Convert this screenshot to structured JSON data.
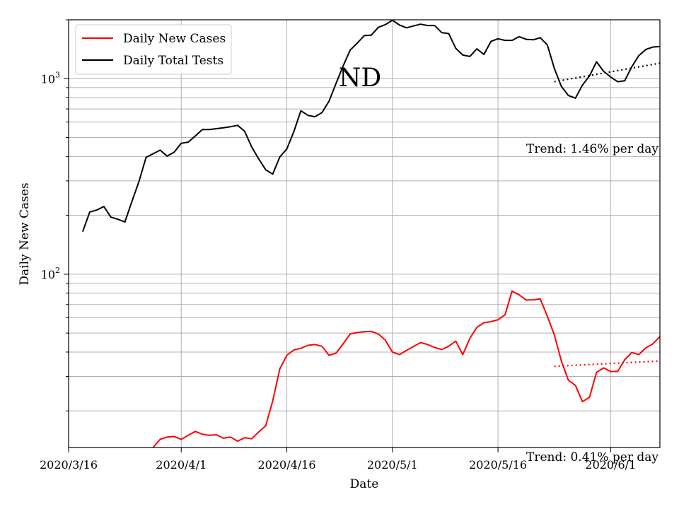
{
  "chart_data": {
    "type": "line",
    "title": "ND",
    "xlabel": "Date",
    "ylabel": "Daily New Cases",
    "yscale": "log",
    "ylim": [
      13,
      2000
    ],
    "xlim": [
      "2020-03-16",
      "2020-06-08"
    ],
    "grid": true,
    "legend_position": "top-left",
    "x_ticks": [
      "2020/3/16",
      "2020/4/1",
      "2020/4/16",
      "2020/5/1",
      "2020/5/16",
      "2020/6/1"
    ],
    "y_tick_labels": [
      {
        "base": "10",
        "exp": "2"
      },
      {
        "base": "10",
        "exp": "3"
      }
    ],
    "series": [
      {
        "name": "Daily New Cases",
        "color": "#ff0000",
        "x": [
          "2020-03-28",
          "2020-03-29",
          "2020-03-30",
          "2020-03-31",
          "2020-04-01",
          "2020-04-02",
          "2020-04-03",
          "2020-04-04",
          "2020-04-05",
          "2020-04-06",
          "2020-04-07",
          "2020-04-08",
          "2020-04-09",
          "2020-04-10",
          "2020-04-11",
          "2020-04-12",
          "2020-04-13",
          "2020-04-14",
          "2020-04-15",
          "2020-04-16",
          "2020-04-17",
          "2020-04-18",
          "2020-04-19",
          "2020-04-20",
          "2020-04-21",
          "2020-04-22",
          "2020-04-23",
          "2020-04-24",
          "2020-04-25",
          "2020-04-26",
          "2020-04-27",
          "2020-04-28",
          "2020-04-29",
          "2020-04-30",
          "2020-05-01",
          "2020-05-02",
          "2020-05-03",
          "2020-05-04",
          "2020-05-05",
          "2020-05-06",
          "2020-05-07",
          "2020-05-08",
          "2020-05-09",
          "2020-05-10",
          "2020-05-11",
          "2020-05-12",
          "2020-05-13",
          "2020-05-14",
          "2020-05-15",
          "2020-05-16",
          "2020-05-17",
          "2020-05-18",
          "2020-05-19",
          "2020-05-20",
          "2020-05-21",
          "2020-05-22",
          "2020-05-23",
          "2020-05-24",
          "2020-05-25",
          "2020-05-26",
          "2020-05-27",
          "2020-05-28",
          "2020-05-29",
          "2020-05-30",
          "2020-05-31",
          "2020-06-01",
          "2020-06-02",
          "2020-06-03",
          "2020-06-04",
          "2020-06-05",
          "2020-06-06",
          "2020-06-07",
          "2020-06-08"
        ],
        "y": [
          13.0,
          14.3,
          14.7,
          14.8,
          14.3,
          15.0,
          15.7,
          15.2,
          15.0,
          15.1,
          14.5,
          14.7,
          14.0,
          14.6,
          14.4,
          15.6,
          16.8,
          22.5,
          32.8,
          38.5,
          41.0,
          41.8,
          43.3,
          43.7,
          42.8,
          38.5,
          39.5,
          44.0,
          49.5,
          50.3,
          50.8,
          51.0,
          49.5,
          46.0,
          40.0,
          38.8,
          40.8,
          42.7,
          44.7,
          43.7,
          42.2,
          41.2,
          42.8,
          45.5,
          38.8,
          47.0,
          53.5,
          56.5,
          57.2,
          58.5,
          62.0,
          82.0,
          78.5,
          73.8,
          74.0,
          74.8,
          61.0,
          49.0,
          36.0,
          28.7,
          27.0,
          22.3,
          23.5,
          31.5,
          33.2,
          31.8,
          31.8,
          36.5,
          39.8,
          38.8,
          42.0,
          44.0,
          48.0
        ]
      },
      {
        "name": "Daily Total Tests",
        "color": "#000000",
        "x": [
          "2020-03-18",
          "2020-03-19",
          "2020-03-20",
          "2020-03-21",
          "2020-03-22",
          "2020-03-23",
          "2020-03-24",
          "2020-03-25",
          "2020-03-26",
          "2020-03-27",
          "2020-03-28",
          "2020-03-29",
          "2020-03-30",
          "2020-03-31",
          "2020-04-01",
          "2020-04-02",
          "2020-04-03",
          "2020-04-04",
          "2020-04-05",
          "2020-04-06",
          "2020-04-07",
          "2020-04-08",
          "2020-04-09",
          "2020-04-10",
          "2020-04-11",
          "2020-04-12",
          "2020-04-13",
          "2020-04-14",
          "2020-04-15",
          "2020-04-16",
          "2020-04-17",
          "2020-04-18",
          "2020-04-19",
          "2020-04-20",
          "2020-04-21",
          "2020-04-22",
          "2020-04-23",
          "2020-04-24",
          "2020-04-25",
          "2020-04-26",
          "2020-04-27",
          "2020-04-28",
          "2020-04-29",
          "2020-04-30",
          "2020-05-01",
          "2020-05-02",
          "2020-05-03",
          "2020-05-04",
          "2020-05-05",
          "2020-05-06",
          "2020-05-07",
          "2020-05-08",
          "2020-05-09",
          "2020-05-10",
          "2020-05-11",
          "2020-05-12",
          "2020-05-13",
          "2020-05-14",
          "2020-05-15",
          "2020-05-16",
          "2020-05-17",
          "2020-05-18",
          "2020-05-19",
          "2020-05-20",
          "2020-05-21",
          "2020-05-22",
          "2020-05-23",
          "2020-05-24",
          "2020-05-25",
          "2020-05-26",
          "2020-05-27",
          "2020-05-28",
          "2020-05-29",
          "2020-05-30",
          "2020-05-31",
          "2020-06-01",
          "2020-06-02",
          "2020-06-03",
          "2020-06-04",
          "2020-06-05",
          "2020-06-06",
          "2020-06-07",
          "2020-06-08"
        ],
        "y": [
          165,
          208,
          213,
          222,
          196,
          191,
          185,
          236,
          298,
          396,
          413,
          431,
          402,
          421,
          467,
          474,
          509,
          549,
          549,
          555,
          561,
          568,
          577,
          539,
          448,
          389,
          342,
          325,
          398,
          437,
          537,
          685,
          649,
          639,
          671,
          767,
          947,
          1160,
          1400,
          1520,
          1660,
          1670,
          1830,
          1890,
          1990,
          1880,
          1820,
          1860,
          1900,
          1870,
          1870,
          1720,
          1700,
          1430,
          1320,
          1300,
          1420,
          1330,
          1550,
          1600,
          1570,
          1570,
          1640,
          1590,
          1580,
          1620,
          1490,
          1130,
          913,
          820,
          795,
          927,
          1034,
          1220,
          1090,
          1020,
          965,
          975,
          1150,
          1310,
          1410,
          1450,
          1460
        ]
      }
    ],
    "trends": [
      {
        "label": "Trend: 1.46% per day",
        "series": "Daily Total Tests",
        "color": "#000000",
        "x": [
          "2020-05-24",
          "2020-06-08"
        ],
        "y": [
          965,
          1200
        ]
      },
      {
        "label": "Trend: 0.41% per day",
        "series": "Daily New Cases",
        "color": "#ff0000",
        "x": [
          "2020-05-24",
          "2020-06-08"
        ],
        "y": [
          33.8,
          36.0
        ]
      }
    ]
  }
}
